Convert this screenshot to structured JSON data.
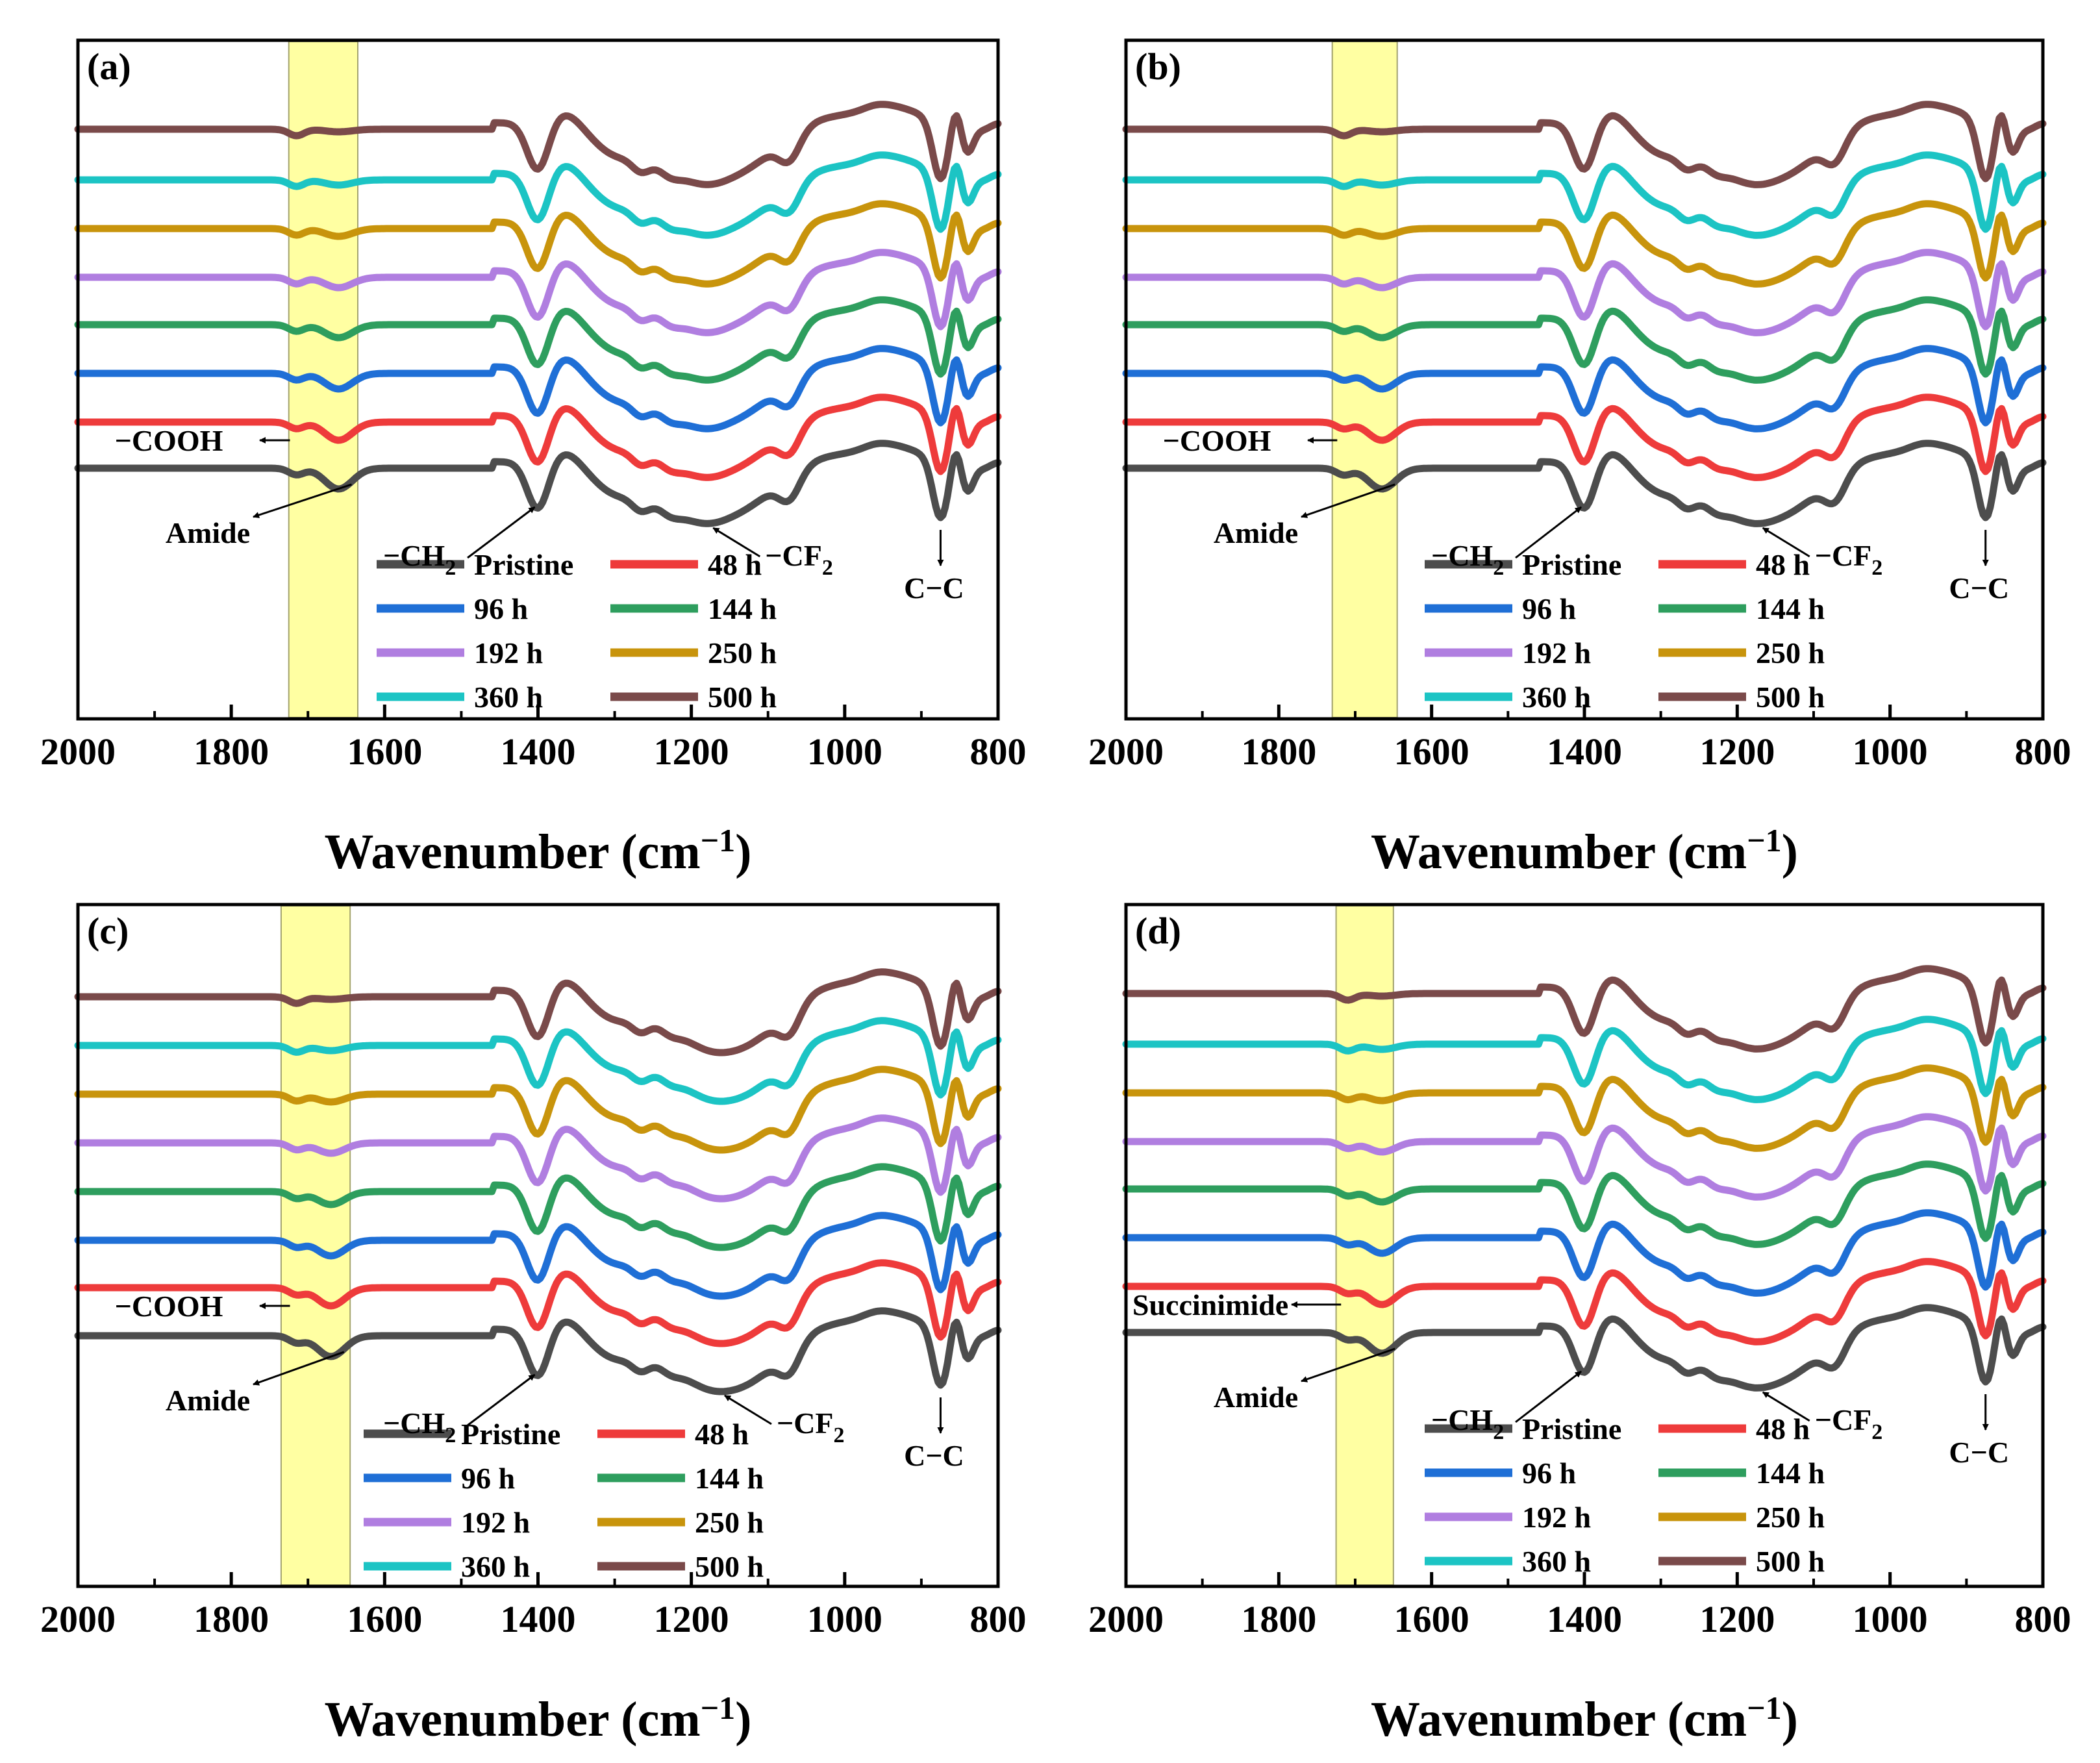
{
  "figure": {
    "colors": {
      "Pristine": "#4d4d4d",
      "48 h": "#ee3b3b",
      "96 h": "#1f6fd6",
      "144 h": "#2e9e5e",
      "192 h": "#b07ee0",
      "250 h": "#c8940c",
      "360 h": "#1cc4c4",
      "500 h": "#7a4a4a",
      "highlight": "#ffff99",
      "axis": "#000000",
      "annotation": "#000000"
    }
  },
  "chart_data": [
    {
      "type": "line",
      "panel_label": "(a)",
      "xlabel": "Wavenumber (cm",
      "xlabel_sup": "−1",
      "xlabel_close": ")",
      "ylabel": "",
      "xlim": [
        2000,
        800
      ],
      "x_reversed": true,
      "x_ticks": [
        2000,
        1800,
        1600,
        1400,
        1200,
        1000,
        800
      ],
      "highlight_band": [
        1725,
        1635
      ],
      "series": [
        {
          "name": "Pristine"
        },
        {
          "name": "48 h"
        },
        {
          "name": "96 h"
        },
        {
          "name": "144 h"
        },
        {
          "name": "192 h"
        },
        {
          "name": "250 h"
        },
        {
          "name": "360 h"
        },
        {
          "name": "500 h"
        }
      ],
      "legend_order": [
        "Pristine",
        "48 h",
        "96 h",
        "144 h",
        "192 h",
        "250 h",
        "360 h",
        "500 h"
      ],
      "peaks_labeled": {
        "COOH": 1715,
        "Amide": 1660,
        "CH2": 1400,
        "CF2": 1180,
        "CC": 875
      },
      "annotations": [
        {
          "text": "−COOH",
          "wavenumber": 1715
        },
        {
          "text": "Amide",
          "wavenumber": 1660
        },
        {
          "text": "−CH",
          "sub": "2",
          "wavenumber": 1400
        },
        {
          "text": "−CF",
          "sub": "2",
          "wavenumber": 1180
        },
        {
          "text": "C−C",
          "wavenumber": 875
        }
      ]
    },
    {
      "type": "line",
      "panel_label": "(b)",
      "xlabel": "Wavenumber (cm",
      "xlabel_sup": "−1",
      "xlabel_close": ")",
      "ylabel": "",
      "xlim": [
        2000,
        800
      ],
      "x_reversed": true,
      "x_ticks": [
        2000,
        1800,
        1600,
        1400,
        1200,
        1000,
        800
      ],
      "highlight_band": [
        1730,
        1645
      ],
      "series": [
        {
          "name": "Pristine"
        },
        {
          "name": "48 h"
        },
        {
          "name": "96 h"
        },
        {
          "name": "144 h"
        },
        {
          "name": "192 h"
        },
        {
          "name": "250 h"
        },
        {
          "name": "360 h"
        },
        {
          "name": "500 h"
        }
      ],
      "legend_order": [
        "Pristine",
        "48 h",
        "96 h",
        "144 h",
        "192 h",
        "250 h",
        "360 h",
        "500 h"
      ],
      "peaks_labeled": {
        "COOH": 1715,
        "Amide": 1665,
        "CH2": 1400,
        "CF2": 1175,
        "CC": 875
      },
      "annotations": [
        {
          "text": "−COOH",
          "wavenumber": 1715
        },
        {
          "text": "Amide",
          "wavenumber": 1665
        },
        {
          "text": "−CH",
          "sub": "2",
          "wavenumber": 1400
        },
        {
          "text": "−CF",
          "sub": "2",
          "wavenumber": 1175
        },
        {
          "text": "C−C",
          "wavenumber": 875
        }
      ]
    },
    {
      "type": "line",
      "panel_label": "(c)",
      "xlabel": "Wavenumber (cm",
      "xlabel_sup": "−1",
      "xlabel_close": ")",
      "ylabel": "",
      "xlim": [
        2000,
        800
      ],
      "x_reversed": true,
      "x_ticks": [
        2000,
        1800,
        1600,
        1400,
        1200,
        1000,
        800
      ],
      "highlight_band": [
        1735,
        1645
      ],
      "series": [
        {
          "name": "Pristine"
        },
        {
          "name": "48 h"
        },
        {
          "name": "96 h"
        },
        {
          "name": "144 h"
        },
        {
          "name": "192 h"
        },
        {
          "name": "250 h"
        },
        {
          "name": "360 h"
        },
        {
          "name": "500 h"
        }
      ],
      "legend_order": [
        "Pristine",
        "48 h",
        "96 h",
        "144 h",
        "192 h",
        "250 h",
        "360 h",
        "500 h"
      ],
      "peaks_labeled": {
        "COOH": 1715,
        "Amide": 1670,
        "CH2": 1400,
        "CF2": 1165,
        "CC": 875
      },
      "annotations": [
        {
          "text": "−COOH",
          "wavenumber": 1715
        },
        {
          "text": "Amide",
          "wavenumber": 1670
        },
        {
          "text": "−CH",
          "sub": "2",
          "wavenumber": 1400
        },
        {
          "text": "−CF",
          "sub": "2",
          "wavenumber": 1165
        },
        {
          "text": "C−C",
          "wavenumber": 875
        }
      ]
    },
    {
      "type": "line",
      "panel_label": "(d)",
      "xlabel": "Wavenumber (cm",
      "xlabel_sup": "−1",
      "xlabel_close": ")",
      "ylabel": "",
      "xlim": [
        2000,
        800
      ],
      "x_reversed": true,
      "x_ticks": [
        2000,
        1800,
        1600,
        1400,
        1200,
        1000,
        800
      ],
      "highlight_band": [
        1725,
        1650
      ],
      "series": [
        {
          "name": "Pristine"
        },
        {
          "name": "48 h"
        },
        {
          "name": "96 h"
        },
        {
          "name": "144 h"
        },
        {
          "name": "192 h"
        },
        {
          "name": "250 h"
        },
        {
          "name": "360 h"
        },
        {
          "name": "500 h"
        }
      ],
      "legend_order": [
        "Pristine",
        "48 h",
        "96 h",
        "144 h",
        "192 h",
        "250 h",
        "360 h",
        "500 h"
      ],
      "peaks_labeled": {
        "COOH": 1710,
        "Amide": 1665,
        "CH2": 1400,
        "CF2": 1175,
        "CC": 875
      },
      "annotations": [
        {
          "text": "Succinimide",
          "wavenumber": 1710
        },
        {
          "text": "Amide",
          "wavenumber": 1665
        },
        {
          "text": "−CH",
          "sub": "2",
          "wavenumber": 1400
        },
        {
          "text": "−CF",
          "sub": "2",
          "wavenumber": 1175
        },
        {
          "text": "C−C",
          "wavenumber": 875
        }
      ]
    }
  ]
}
